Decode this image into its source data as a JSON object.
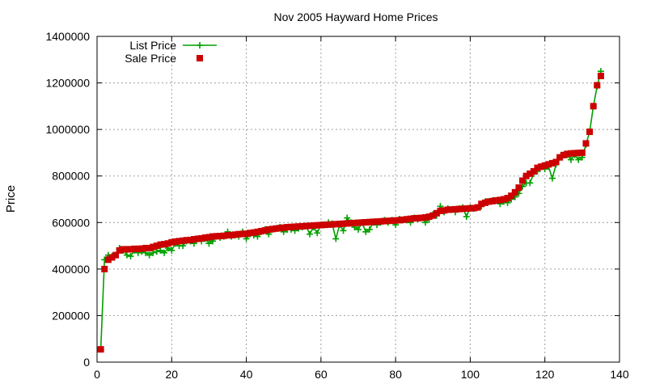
{
  "chart_data": {
    "type": "line",
    "title": "Nov 2005 Hayward Home Prices",
    "xlabel": "",
    "ylabel": "Price",
    "xlim": [
      0,
      140
    ],
    "ylim": [
      0,
      1400000
    ],
    "xticks": [
      0,
      20,
      40,
      60,
      80,
      100,
      120,
      140
    ],
    "yticks": [
      0,
      200000,
      400000,
      600000,
      800000,
      1000000,
      1200000,
      1400000
    ],
    "grid": true,
    "legend_position": "top-left",
    "series": [
      {
        "name": "List Price",
        "style": "line-with-plus-markers",
        "color": "#00a000",
        "x": [
          1,
          2,
          3,
          4,
          5,
          6,
          7,
          8,
          9,
          10,
          11,
          12,
          13,
          14,
          15,
          16,
          17,
          18,
          19,
          20,
          21,
          22,
          23,
          24,
          25,
          26,
          27,
          28,
          29,
          30,
          31,
          32,
          33,
          34,
          35,
          36,
          37,
          38,
          39,
          40,
          41,
          42,
          43,
          44,
          45,
          46,
          47,
          48,
          49,
          50,
          51,
          52,
          53,
          54,
          55,
          56,
          57,
          58,
          59,
          60,
          61,
          62,
          63,
          64,
          65,
          66,
          67,
          68,
          69,
          70,
          71,
          72,
          73,
          74,
          75,
          76,
          77,
          78,
          79,
          80,
          81,
          82,
          83,
          84,
          85,
          86,
          87,
          88,
          89,
          90,
          91,
          92,
          93,
          94,
          95,
          96,
          97,
          98,
          99,
          100,
          101,
          102,
          103,
          104,
          105,
          106,
          107,
          108,
          109,
          110,
          111,
          112,
          113,
          114,
          115,
          116,
          117,
          118,
          119,
          120,
          121,
          122,
          123,
          124,
          125,
          126,
          127,
          128,
          129,
          130,
          131,
          132,
          133,
          134,
          135
        ],
        "values": [
          55000,
          440000,
          460000,
          455000,
          460000,
          490000,
          480000,
          460000,
          455000,
          480000,
          470000,
          475000,
          470000,
          460000,
          470000,
          475000,
          480000,
          470000,
          490000,
          480000,
          510000,
          500000,
          500000,
          520000,
          520000,
          510000,
          530000,
          520000,
          530000,
          510000,
          520000,
          540000,
          535000,
          540000,
          560000,
          540000,
          545000,
          540000,
          560000,
          530000,
          550000,
          545000,
          540000,
          560000,
          570000,
          550000,
          570000,
          575000,
          580000,
          560000,
          570000,
          570000,
          565000,
          575000,
          580000,
          585000,
          550000,
          580000,
          555000,
          590000,
          590000,
          600000,
          595000,
          530000,
          590000,
          565000,
          620000,
          600000,
          580000,
          570000,
          600000,
          560000,
          570000,
          600000,
          590000,
          600000,
          610000,
          600000,
          610000,
          590000,
          615000,
          610000,
          610000,
          600000,
          620000,
          615000,
          620000,
          600000,
          615000,
          635000,
          630000,
          670000,
          645000,
          660000,
          655000,
          645000,
          660000,
          665000,
          625000,
          665000,
          660000,
          665000,
          670000,
          690000,
          690000,
          695000,
          695000,
          680000,
          690000,
          685000,
          700000,
          710000,
          725000,
          755000,
          770000,
          770000,
          810000,
          820000,
          840000,
          830000,
          840000,
          790000,
          850000,
          880000,
          890000,
          890000,
          870000,
          890000,
          870000,
          880000,
          935000,
          990000,
          1100000,
          1185000,
          1250000
        ]
      },
      {
        "name": "Sale Price",
        "style": "square-markers",
        "color": "#cc0000",
        "x": [
          1,
          2,
          3,
          4,
          5,
          6,
          7,
          8,
          9,
          10,
          11,
          12,
          13,
          14,
          15,
          16,
          17,
          18,
          19,
          20,
          21,
          22,
          23,
          24,
          25,
          26,
          27,
          28,
          29,
          30,
          31,
          32,
          33,
          34,
          35,
          36,
          37,
          38,
          39,
          40,
          41,
          42,
          43,
          44,
          45,
          46,
          47,
          48,
          49,
          50,
          51,
          52,
          53,
          54,
          55,
          56,
          57,
          58,
          59,
          60,
          61,
          62,
          63,
          64,
          65,
          66,
          67,
          68,
          69,
          70,
          71,
          72,
          73,
          74,
          75,
          76,
          77,
          78,
          79,
          80,
          81,
          82,
          83,
          84,
          85,
          86,
          87,
          88,
          89,
          90,
          91,
          92,
          93,
          94,
          95,
          96,
          97,
          98,
          99,
          100,
          101,
          102,
          103,
          104,
          105,
          106,
          107,
          108,
          109,
          110,
          111,
          112,
          113,
          114,
          115,
          116,
          117,
          118,
          119,
          120,
          121,
          122,
          123,
          124,
          125,
          126,
          127,
          128,
          129,
          130,
          131,
          132,
          133,
          134,
          135
        ],
        "values": [
          55000,
          400000,
          440000,
          450000,
          460000,
          480000,
          485000,
          485000,
          485000,
          487000,
          487000,
          488000,
          490000,
          490000,
          495000,
          500000,
          505000,
          507000,
          510000,
          515000,
          518000,
          520000,
          522000,
          524000,
          525000,
          528000,
          530000,
          532000,
          535000,
          537000,
          540000,
          541000,
          542000,
          543000,
          545000,
          546000,
          548000,
          550000,
          551000,
          552000,
          555000,
          557000,
          560000,
          563000,
          566000,
          570000,
          572000,
          574000,
          576000,
          578000,
          580000,
          581000,
          582000,
          583000,
          584000,
          585000,
          586000,
          587000,
          588000,
          589000,
          590000,
          591000,
          592000,
          593000,
          594000,
          595000,
          596000,
          597000,
          598000,
          599000,
          600000,
          601000,
          602000,
          603000,
          604000,
          605000,
          606000,
          607000,
          608000,
          609000,
          610000,
          612000,
          614000,
          616000,
          618000,
          619000,
          620000,
          622000,
          625000,
          630000,
          640000,
          650000,
          652000,
          655000,
          656000,
          657000,
          658000,
          659000,
          660000,
          661000,
          662000,
          665000,
          680000,
          685000,
          690000,
          692000,
          695000,
          697000,
          700000,
          705000,
          715000,
          730000,
          750000,
          780000,
          800000,
          810000,
          820000,
          835000,
          840000,
          845000,
          850000,
          855000,
          860000,
          880000,
          890000,
          895000,
          897000,
          898000,
          899000,
          900000,
          940000,
          990000,
          1100000,
          1190000,
          1230000
        ]
      }
    ]
  }
}
